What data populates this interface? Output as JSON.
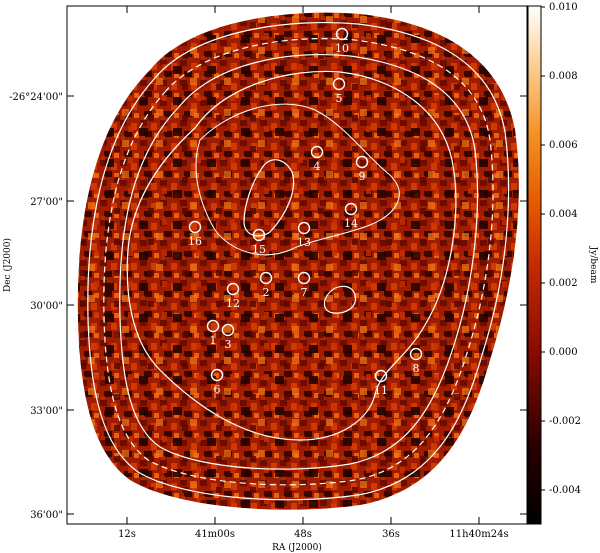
{
  "figure": {
    "xlabel": "RA (J2000)",
    "ylabel": "Dec (J2000)",
    "x_ticks": [
      "12s",
      "41m00s",
      "48s",
      "36s",
      "11h40m24s"
    ],
    "y_ticks": [
      "-26°24'00\"",
      "27'00\"",
      "30'00\"",
      "33'00\"",
      "36'00\""
    ],
    "colorbar": {
      "label": "Jy/beam",
      "ticks": [
        "0.010",
        "0.008",
        "0.006",
        "0.004",
        "0.002",
        "0.000",
        "-0.002",
        "-0.004"
      ],
      "range": [
        -0.005,
        0.01
      ]
    },
    "sources": [
      {
        "id": "1"
      },
      {
        "id": "2"
      },
      {
        "id": "3"
      },
      {
        "id": "4"
      },
      {
        "id": "5"
      },
      {
        "id": "6"
      },
      {
        "id": "7"
      },
      {
        "id": "8"
      },
      {
        "id": "9"
      },
      {
        "id": "10"
      },
      {
        "id": "11"
      },
      {
        "id": "12"
      },
      {
        "id": "13"
      },
      {
        "id": "14"
      },
      {
        "id": "15"
      },
      {
        "id": "16"
      }
    ]
  }
}
